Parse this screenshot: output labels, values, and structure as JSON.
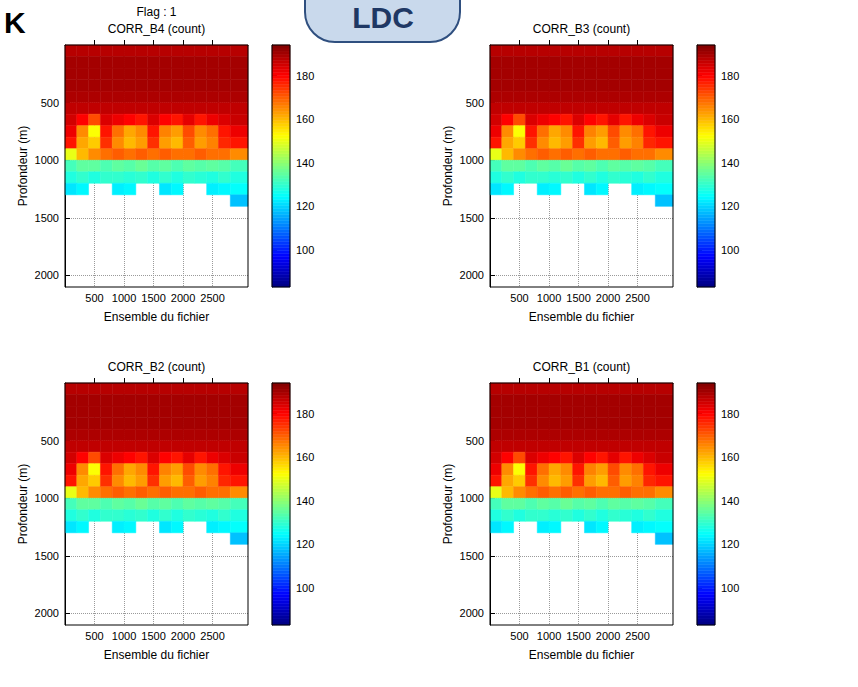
{
  "header": {
    "badge": "LDC",
    "letter": "K"
  },
  "chart_data": [
    {
      "type": "heatmap",
      "title": "CORR_B4 (count)",
      "subtitle": "Flag : 1",
      "x_label": "Ensemble du fichier",
      "y_label": "Profondeur (m)",
      "xlim": [
        0,
        3100
      ],
      "xticks": [
        500,
        1000,
        1500,
        2000,
        2500
      ],
      "ylim": [
        0,
        2100
      ],
      "yticks": [
        500,
        1000,
        1500,
        2000
      ],
      "grid": true,
      "x_edges": [
        0,
        200,
        400,
        600,
        800,
        1000,
        1200,
        1400,
        1600,
        1800,
        2000,
        2200,
        2400,
        2600,
        2800,
        3100
      ],
      "y_edges": [
        0,
        100,
        200,
        300,
        400,
        500,
        600,
        700,
        800,
        900,
        1000,
        1100,
        1200,
        1300,
        1400
      ],
      "cells": [
        [
          188,
          188,
          188,
          188,
          188,
          188,
          188,
          188,
          188,
          188,
          188,
          188,
          188,
          188,
          188
        ],
        [
          190,
          190,
          190,
          190,
          190,
          190,
          190,
          190,
          190,
          190,
          190,
          190,
          190,
          190,
          190
        ],
        [
          190,
          190,
          190,
          190,
          190,
          190,
          190,
          190,
          190,
          190,
          190,
          190,
          190,
          190,
          190
        ],
        [
          190,
          190,
          190,
          190,
          190,
          190,
          190,
          190,
          190,
          190,
          190,
          190,
          190,
          190,
          190
        ],
        [
          189,
          189,
          189,
          189,
          189,
          189,
          189,
          189,
          189,
          189,
          189,
          189,
          189,
          189,
          189
        ],
        [
          187,
          187,
          187,
          187,
          187,
          187,
          187,
          187,
          187,
          187,
          187,
          187,
          187,
          187,
          187
        ],
        [
          185,
          180,
          172,
          184,
          182,
          180,
          178,
          184,
          180,
          178,
          183,
          178,
          182,
          184,
          186
        ],
        [
          182,
          165,
          152,
          178,
          168,
          162,
          165,
          178,
          166,
          163,
          172,
          165,
          168,
          178,
          182
        ],
        [
          178,
          162,
          158,
          175,
          165,
          160,
          163,
          175,
          163,
          160,
          170,
          163,
          166,
          176,
          178
        ],
        [
          150,
          160,
          165,
          168,
          170,
          168,
          170,
          168,
          170,
          168,
          168,
          170,
          168,
          168,
          165
        ],
        [
          132,
          135,
          135,
          133,
          135,
          134,
          136,
          134,
          135,
          133,
          135,
          134,
          135,
          134,
          132
        ],
        [
          128,
          130,
          128,
          130,
          130,
          129,
          130,
          128,
          130,
          128,
          130,
          129,
          128,
          130,
          128
        ],
        [
          122,
          124,
          null,
          null,
          123,
          124,
          null,
          null,
          122,
          124,
          null,
          null,
          123,
          124,
          125
        ],
        [
          null,
          null,
          null,
          null,
          null,
          null,
          null,
          null,
          null,
          null,
          null,
          null,
          null,
          null,
          118
        ]
      ],
      "colorbar": {
        "range": [
          83,
          194
        ],
        "ticks": [
          100,
          120,
          140,
          160,
          180
        ]
      }
    },
    {
      "type": "heatmap",
      "title": "CORR_B3 (count)",
      "x_label": "Ensemble du fichier",
      "y_label": "Profondeur (m)",
      "xlim": [
        0,
        3100
      ],
      "xticks": [
        500,
        1000,
        1500,
        2000,
        2500
      ],
      "ylim": [
        0,
        2100
      ],
      "yticks": [
        500,
        1000,
        1500,
        2000
      ],
      "grid": true,
      "x_edges": [
        0,
        200,
        400,
        600,
        800,
        1000,
        1200,
        1400,
        1600,
        1800,
        2000,
        2200,
        2400,
        2600,
        2800,
        3100
      ],
      "y_edges": [
        0,
        100,
        200,
        300,
        400,
        500,
        600,
        700,
        800,
        900,
        1000,
        1100,
        1200,
        1300,
        1400
      ],
      "cells": [
        [
          188,
          188,
          188,
          188,
          188,
          188,
          188,
          188,
          188,
          188,
          188,
          188,
          188,
          188,
          188
        ],
        [
          190,
          190,
          190,
          190,
          190,
          190,
          190,
          190,
          190,
          190,
          190,
          190,
          190,
          190,
          190
        ],
        [
          190,
          190,
          190,
          190,
          190,
          190,
          190,
          190,
          190,
          190,
          190,
          190,
          190,
          190,
          190
        ],
        [
          190,
          190,
          190,
          190,
          190,
          190,
          190,
          190,
          190,
          190,
          190,
          190,
          190,
          190,
          190
        ],
        [
          189,
          189,
          189,
          189,
          189,
          189,
          189,
          189,
          189,
          189,
          189,
          189,
          189,
          189,
          189
        ],
        [
          187,
          187,
          187,
          187,
          187,
          187,
          187,
          187,
          187,
          187,
          187,
          187,
          187,
          187,
          187
        ],
        [
          185,
          180,
          172,
          184,
          182,
          180,
          178,
          184,
          180,
          178,
          183,
          178,
          182,
          184,
          186
        ],
        [
          182,
          165,
          152,
          178,
          168,
          162,
          165,
          178,
          166,
          163,
          172,
          165,
          168,
          178,
          182
        ],
        [
          178,
          162,
          158,
          175,
          165,
          160,
          163,
          175,
          163,
          160,
          170,
          163,
          166,
          176,
          178
        ],
        [
          150,
          160,
          165,
          168,
          170,
          168,
          170,
          168,
          170,
          168,
          168,
          170,
          168,
          168,
          165
        ],
        [
          132,
          135,
          135,
          133,
          135,
          134,
          136,
          134,
          135,
          133,
          135,
          134,
          135,
          134,
          132
        ],
        [
          128,
          130,
          128,
          130,
          130,
          129,
          130,
          128,
          130,
          128,
          130,
          129,
          128,
          130,
          128
        ],
        [
          122,
          124,
          null,
          null,
          123,
          124,
          null,
          null,
          122,
          124,
          null,
          null,
          123,
          124,
          125
        ],
        [
          null,
          null,
          null,
          null,
          null,
          null,
          null,
          null,
          null,
          null,
          null,
          null,
          null,
          null,
          118
        ]
      ],
      "colorbar": {
        "range": [
          83,
          194
        ],
        "ticks": [
          100,
          120,
          140,
          160,
          180
        ]
      }
    },
    {
      "type": "heatmap",
      "title": "CORR_B2 (count)",
      "x_label": "Ensemble du fichier",
      "y_label": "Profondeur (m)",
      "xlim": [
        0,
        3100
      ],
      "xticks": [
        500,
        1000,
        1500,
        2000,
        2500
      ],
      "ylim": [
        0,
        2100
      ],
      "yticks": [
        500,
        1000,
        1500,
        2000
      ],
      "grid": true,
      "x_edges": [
        0,
        200,
        400,
        600,
        800,
        1000,
        1200,
        1400,
        1600,
        1800,
        2000,
        2200,
        2400,
        2600,
        2800,
        3100
      ],
      "y_edges": [
        0,
        100,
        200,
        300,
        400,
        500,
        600,
        700,
        800,
        900,
        1000,
        1100,
        1200,
        1300,
        1400
      ],
      "cells": [
        [
          188,
          188,
          188,
          188,
          188,
          188,
          188,
          188,
          188,
          188,
          188,
          188,
          188,
          188,
          188
        ],
        [
          190,
          190,
          190,
          190,
          190,
          190,
          190,
          190,
          190,
          190,
          190,
          190,
          190,
          190,
          190
        ],
        [
          190,
          190,
          190,
          190,
          190,
          190,
          190,
          190,
          190,
          190,
          190,
          190,
          190,
          190,
          190
        ],
        [
          190,
          190,
          190,
          190,
          190,
          190,
          190,
          190,
          190,
          190,
          190,
          190,
          190,
          190,
          190
        ],
        [
          189,
          189,
          189,
          189,
          189,
          189,
          189,
          189,
          189,
          189,
          189,
          189,
          189,
          189,
          189
        ],
        [
          187,
          187,
          187,
          187,
          187,
          187,
          187,
          187,
          187,
          187,
          187,
          187,
          187,
          187,
          187
        ],
        [
          185,
          180,
          172,
          184,
          182,
          180,
          178,
          184,
          180,
          178,
          183,
          178,
          182,
          184,
          186
        ],
        [
          182,
          165,
          152,
          178,
          168,
          162,
          165,
          178,
          166,
          163,
          172,
          165,
          168,
          178,
          182
        ],
        [
          178,
          162,
          158,
          175,
          165,
          160,
          163,
          175,
          163,
          160,
          170,
          163,
          166,
          176,
          178
        ],
        [
          150,
          160,
          165,
          168,
          170,
          168,
          170,
          168,
          170,
          168,
          168,
          170,
          168,
          168,
          165
        ],
        [
          132,
          135,
          135,
          133,
          135,
          134,
          136,
          134,
          135,
          133,
          135,
          134,
          135,
          134,
          132
        ],
        [
          128,
          130,
          128,
          130,
          130,
          129,
          130,
          128,
          130,
          128,
          130,
          129,
          128,
          130,
          128
        ],
        [
          122,
          124,
          null,
          null,
          123,
          124,
          null,
          null,
          122,
          124,
          null,
          null,
          123,
          124,
          125
        ],
        [
          null,
          null,
          null,
          null,
          null,
          null,
          null,
          null,
          null,
          null,
          null,
          null,
          null,
          null,
          118
        ]
      ],
      "colorbar": {
        "range": [
          83,
          194
        ],
        "ticks": [
          100,
          120,
          140,
          160,
          180
        ]
      }
    },
    {
      "type": "heatmap",
      "title": "CORR_B1 (count)",
      "x_label": "Ensemble du fichier",
      "y_label": "Profondeur (m)",
      "xlim": [
        0,
        3100
      ],
      "xticks": [
        500,
        1000,
        1500,
        2000,
        2500
      ],
      "ylim": [
        0,
        2100
      ],
      "yticks": [
        500,
        1000,
        1500,
        2000
      ],
      "grid": true,
      "x_edges": [
        0,
        200,
        400,
        600,
        800,
        1000,
        1200,
        1400,
        1600,
        1800,
        2000,
        2200,
        2400,
        2600,
        2800,
        3100
      ],
      "y_edges": [
        0,
        100,
        200,
        300,
        400,
        500,
        600,
        700,
        800,
        900,
        1000,
        1100,
        1200,
        1300,
        1400
      ],
      "cells": [
        [
          188,
          188,
          188,
          188,
          188,
          188,
          188,
          188,
          188,
          188,
          188,
          188,
          188,
          188,
          188
        ],
        [
          190,
          190,
          190,
          190,
          190,
          190,
          190,
          190,
          190,
          190,
          190,
          190,
          190,
          190,
          190
        ],
        [
          190,
          190,
          190,
          190,
          190,
          190,
          190,
          190,
          190,
          190,
          190,
          190,
          190,
          190,
          190
        ],
        [
          190,
          190,
          190,
          190,
          190,
          190,
          190,
          190,
          190,
          190,
          190,
          190,
          190,
          190,
          190
        ],
        [
          189,
          189,
          189,
          189,
          189,
          189,
          189,
          189,
          189,
          189,
          189,
          189,
          189,
          189,
          189
        ],
        [
          187,
          187,
          187,
          187,
          187,
          187,
          187,
          187,
          187,
          187,
          187,
          187,
          187,
          187,
          187
        ],
        [
          185,
          180,
          172,
          184,
          182,
          180,
          178,
          184,
          180,
          178,
          183,
          178,
          182,
          184,
          186
        ],
        [
          182,
          165,
          152,
          178,
          168,
          162,
          165,
          178,
          166,
          163,
          172,
          165,
          168,
          178,
          182
        ],
        [
          178,
          162,
          158,
          175,
          165,
          160,
          163,
          175,
          163,
          160,
          170,
          163,
          166,
          176,
          178
        ],
        [
          150,
          160,
          165,
          168,
          170,
          168,
          170,
          168,
          170,
          168,
          168,
          170,
          168,
          168,
          165
        ],
        [
          132,
          135,
          135,
          133,
          135,
          134,
          136,
          134,
          135,
          133,
          135,
          134,
          135,
          134,
          132
        ],
        [
          128,
          130,
          128,
          130,
          130,
          129,
          130,
          128,
          130,
          128,
          130,
          129,
          128,
          130,
          128
        ],
        [
          122,
          124,
          null,
          null,
          123,
          124,
          null,
          null,
          122,
          124,
          null,
          null,
          123,
          124,
          125
        ],
        [
          null,
          null,
          null,
          null,
          null,
          null,
          null,
          null,
          null,
          null,
          null,
          null,
          null,
          null,
          118
        ]
      ],
      "colorbar": {
        "range": [
          83,
          194
        ],
        "ticks": [
          100,
          120,
          140,
          160,
          180
        ]
      }
    }
  ]
}
